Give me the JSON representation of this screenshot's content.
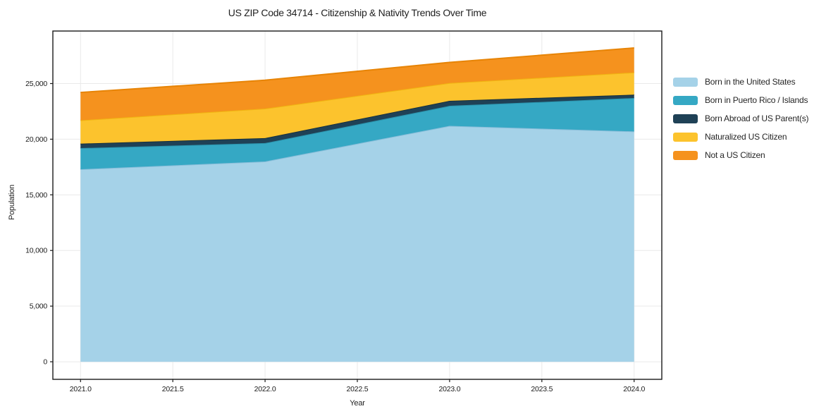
{
  "figure": {
    "title": "US ZIP Code 34714 - Citizenship & Nativity Trends Over Time",
    "xlabel": "Year",
    "ylabel": "Population"
  },
  "chart_data": {
    "type": "area",
    "stacked": true,
    "title": "US ZIP Code 34714 - Citizenship & Nativity Trends Over Time",
    "xlabel": "Year",
    "ylabel": "Population",
    "x": [
      2021,
      2022,
      2023,
      2024
    ],
    "series": [
      {
        "name": "Born in the United States",
        "values": [
          17300,
          18000,
          21200,
          20700
        ],
        "fill": "#a5d2e8",
        "line": "#88bdd9"
      },
      {
        "name": "Born in Puerto Rico / Islands",
        "values": [
          1900,
          1650,
          1800,
          3000
        ],
        "fill": "#35a8c4",
        "line": "#2b92ab"
      },
      {
        "name": "Born Abroad of US Parent(s)",
        "values": [
          400,
          450,
          450,
          300
        ],
        "fill": "#1f4156",
        "line": "#152f3e"
      },
      {
        "name": "Naturalized US Citizen",
        "values": [
          2100,
          2650,
          1600,
          2000
        ],
        "fill": "#fcc32d",
        "line": "#f0b511"
      },
      {
        "name": "Not a US Citizen",
        "values": [
          2500,
          2550,
          1850,
          2200
        ],
        "fill": "#f5921e",
        "line": "#e78406"
      }
    ],
    "stacked_totals": [
      24200,
      25300,
      26900,
      28200
    ],
    "xticks": {
      "values": [
        2021.0,
        2021.5,
        2022.0,
        2022.5,
        2023.0,
        2023.5,
        2024.0
      ],
      "labels": [
        "2021.0",
        "2021.5",
        "2022.0",
        "2022.5",
        "2023.0",
        "2023.5",
        "2024.0"
      ]
    },
    "yticks": {
      "values": [
        0,
        5000,
        10000,
        15000,
        20000,
        25000
      ],
      "labels": [
        "0",
        "5,000",
        "10,000",
        "15,000",
        "20,000",
        "25,000"
      ]
    },
    "xlim": [
      2020.85,
      2024.15
    ],
    "ylim": [
      -1580,
      29720
    ],
    "grid": true,
    "legend_position": "right"
  },
  "colors": {
    "background": "#ffffff",
    "grid": "#e9e9e9",
    "frame": "#1a1a1a",
    "tick": "#1a1a1a",
    "text": "#1f1f1f"
  }
}
